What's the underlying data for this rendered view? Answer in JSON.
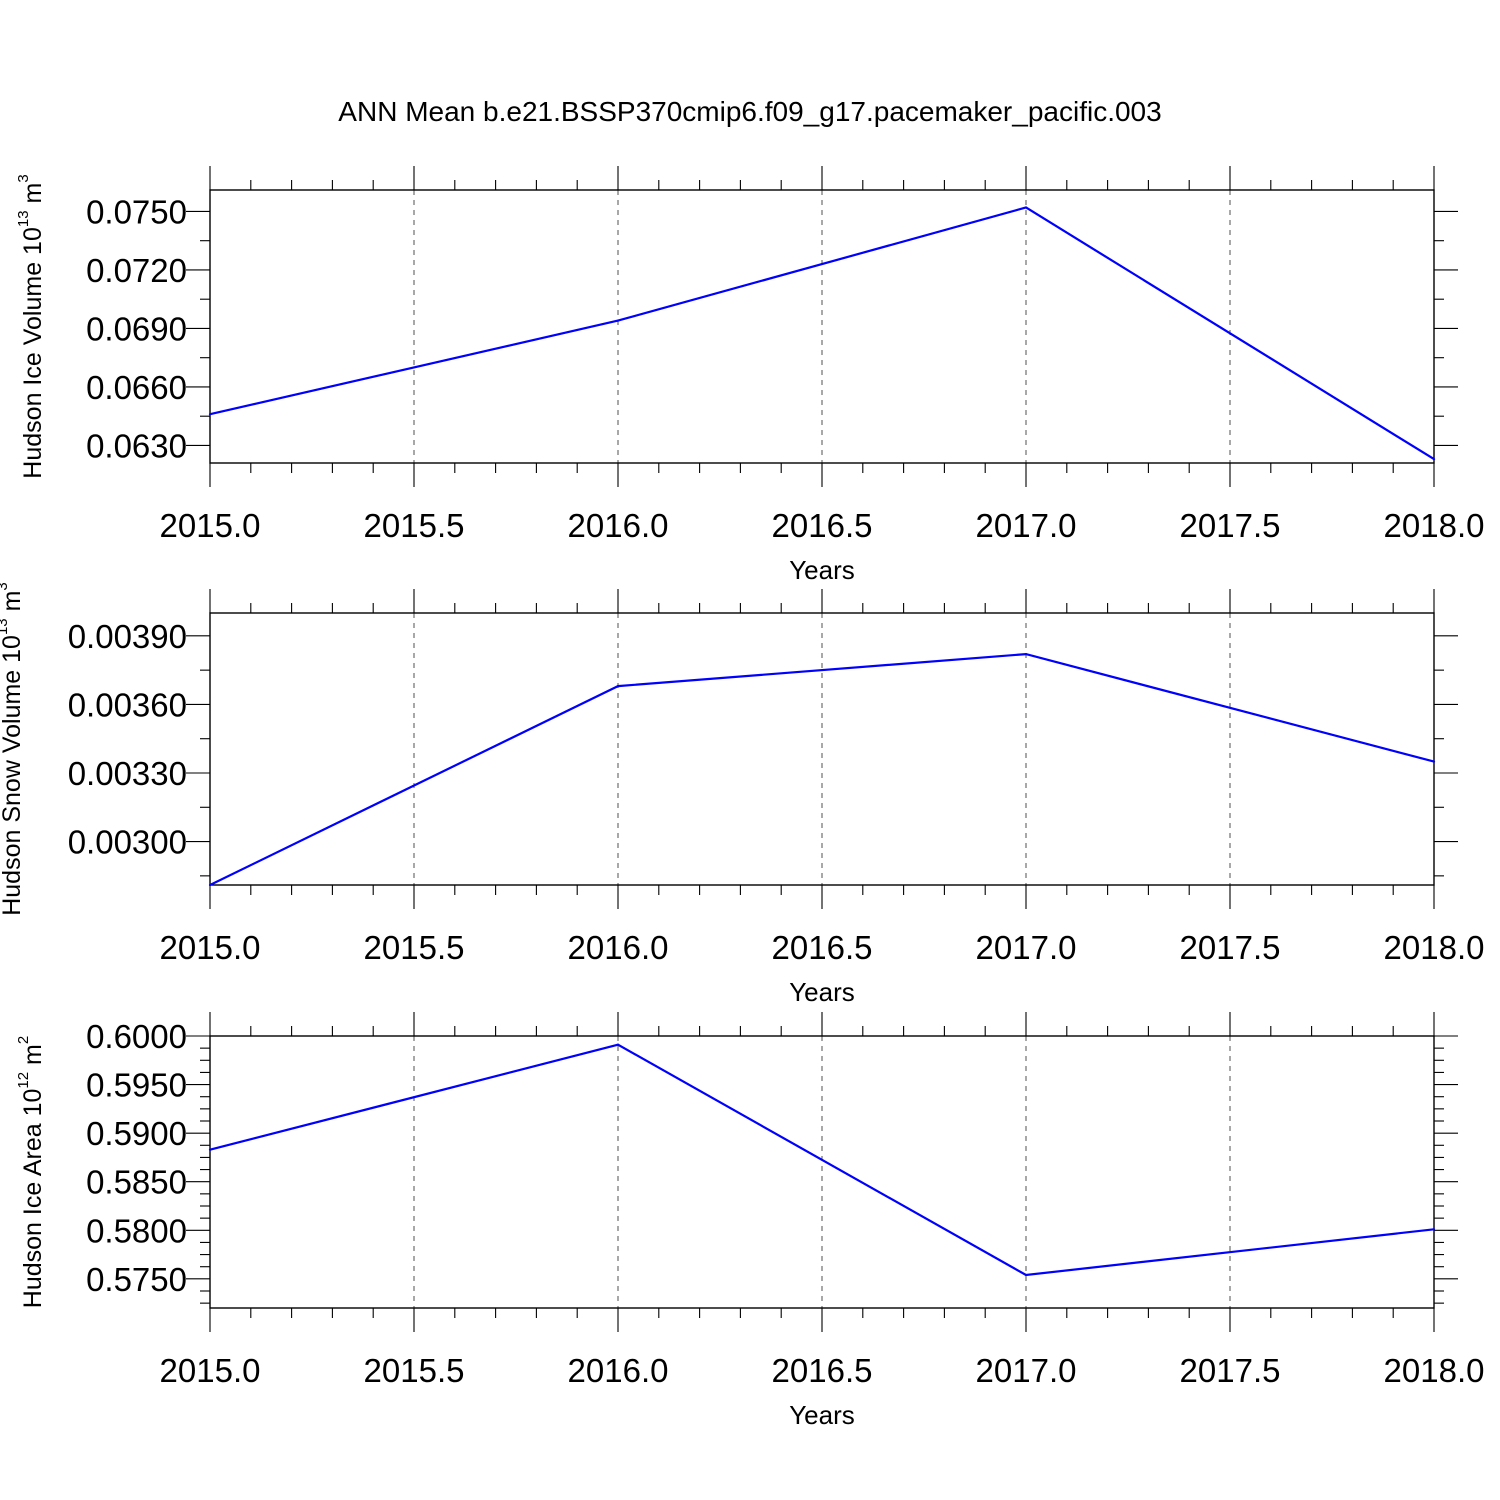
{
  "title": "ANN Mean b.e21.BSSP370cmip6.f09_g17.pacemaker_pacific.003",
  "colors": {
    "series": "#0000ff",
    "axes": "#000000",
    "background": "#ffffff"
  },
  "chart_data": [
    {
      "type": "line",
      "xlabel": "Years",
      "ylabel": {
        "text": "Hudson Ice Volume 10",
        "exp": "13",
        "unit": " m",
        "unit_exp": "3"
      },
      "x": [
        2015.0,
        2016.0,
        2017.0,
        2018.0
      ],
      "series": [
        {
          "values": [
            0.0646,
            0.0694,
            0.0752,
            0.0623
          ]
        }
      ],
      "xlim": [
        2015.0,
        2018.0
      ],
      "ylim": [
        0.0621,
        0.0761
      ],
      "xticks": [
        "2015.0",
        "2015.5",
        "2016.0",
        "2016.5",
        "2017.0",
        "2017.5",
        "2018.0"
      ],
      "yticks": [
        "0.0630",
        "0.0660",
        "0.0690",
        "0.0720",
        "0.0750"
      ],
      "grid": "vertical dashed at major x ticks"
    },
    {
      "type": "line",
      "xlabel": "Years",
      "ylabel": {
        "text": "Hudson Snow Volume 10",
        "exp": "13",
        "unit": " m",
        "unit_exp": "3"
      },
      "x": [
        2015.0,
        2016.0,
        2017.0,
        2018.0
      ],
      "series": [
        {
          "values": [
            0.00281,
            0.00368,
            0.00382,
            0.00335
          ]
        }
      ],
      "xlim": [
        2015.0,
        2018.0
      ],
      "ylim": [
        0.00281,
        0.004
      ],
      "xticks": [
        "2015.0",
        "2015.5",
        "2016.0",
        "2016.5",
        "2017.0",
        "2017.5",
        "2018.0"
      ],
      "yticks": [
        "0.00300",
        "0.00330",
        "0.00360",
        "0.00390"
      ],
      "grid": "vertical dashed at major x ticks"
    },
    {
      "type": "line",
      "xlabel": "Years",
      "ylabel": {
        "text": "Hudson Ice Area 10",
        "exp": "12",
        "unit": " m",
        "unit_exp": "2"
      },
      "x": [
        2015.0,
        2016.0,
        2017.0,
        2018.0
      ],
      "series": [
        {
          "values": [
            0.5883,
            0.5991,
            0.5754,
            0.5801
          ]
        }
      ],
      "xlim": [
        2015.0,
        2018.0
      ],
      "ylim": [
        0.572,
        0.6
      ],
      "xticks": [
        "2015.0",
        "2015.5",
        "2016.0",
        "2016.5",
        "2017.0",
        "2017.5",
        "2018.0"
      ],
      "yticks": [
        "0.5750",
        "0.5800",
        "0.5850",
        "0.5900",
        "0.5950",
        "0.6000"
      ],
      "grid": "vertical dashed at major x ticks"
    }
  ]
}
